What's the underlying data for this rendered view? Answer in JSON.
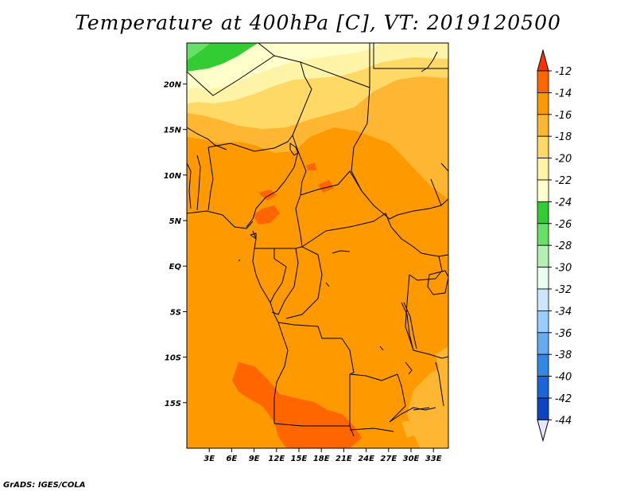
{
  "title": "Temperature at 400hPa [C], VT: 2019120500",
  "credit": "GrADS: IGES/COLA",
  "map": {
    "lon_range": [
      0,
      35
    ],
    "lat_range": [
      -20,
      24.5
    ],
    "lon_ticks": [
      {
        "value": 3,
        "label": "3E"
      },
      {
        "value": 6,
        "label": "6E"
      },
      {
        "value": 9,
        "label": "9E"
      },
      {
        "value": 12,
        "label": "12E"
      },
      {
        "value": 15,
        "label": "15E"
      },
      {
        "value": 18,
        "label": "18E"
      },
      {
        "value": 21,
        "label": "21E"
      },
      {
        "value": 24,
        "label": "24E"
      },
      {
        "value": 27,
        "label": "27E"
      },
      {
        "value": 30,
        "label": "30E"
      },
      {
        "value": 33,
        "label": "33E"
      }
    ],
    "lat_ticks": [
      {
        "value": 20,
        "label": "20N"
      },
      {
        "value": 15,
        "label": "15N"
      },
      {
        "value": 10,
        "label": "10N"
      },
      {
        "value": 5,
        "label": "5N"
      },
      {
        "value": 0,
        "label": "EQ"
      },
      {
        "value": -5,
        "label": "5S"
      },
      {
        "value": -10,
        "label": "10S"
      },
      {
        "value": -15,
        "label": "15S"
      }
    ]
  },
  "colorbar": {
    "levels": [
      "-12",
      "-14",
      "-16",
      "-18",
      "-20",
      "-22",
      "-24",
      "-26",
      "-28",
      "-30",
      "-32",
      "-34",
      "-36",
      "-38",
      "-40",
      "-42",
      "-44"
    ],
    "colors": [
      "#ff6600",
      "#ff9900",
      "#ffb733",
      "#ffd966",
      "#fff3a8",
      "#ffffcc",
      "#33cc33",
      "#66e066",
      "#b3f0b3",
      "#e6fff0",
      "#cce6ff",
      "#99ccff",
      "#66aaf0",
      "#3388e6",
      "#1a66d9",
      "#0d44c0",
      "#002288",
      "#000066"
    ],
    "top_arrow_color": "#ff3300",
    "bottom_arrow_color": "#e6e6ff"
  }
}
